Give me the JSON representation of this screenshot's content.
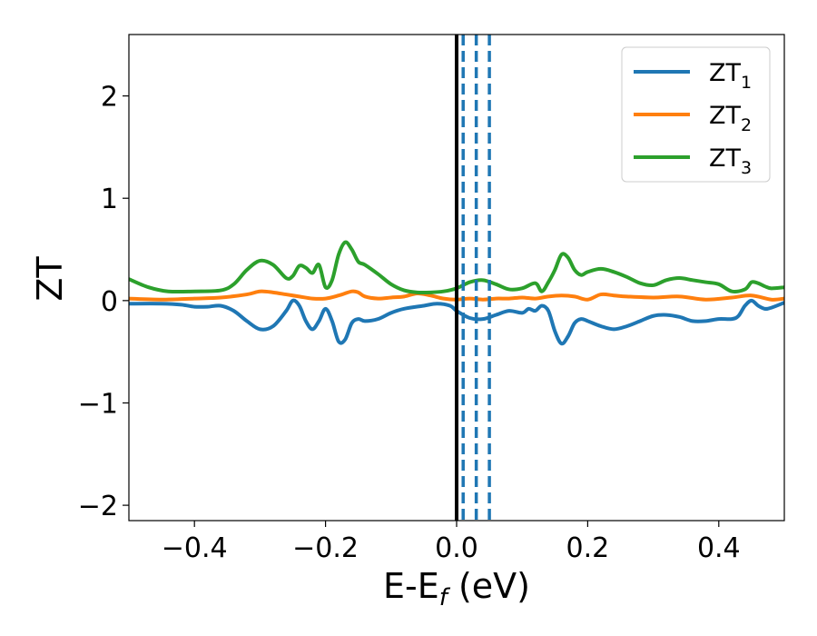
{
  "chart_data": {
    "type": "line",
    "xlabel": "E-E",
    "xlabel_sub": "f",
    "xlabel_unit": " (eV)",
    "ylabel": "ZT",
    "xlim": [
      -0.5,
      0.5
    ],
    "ylim": [
      -2.15,
      2.6
    ],
    "xticks": [
      -0.4,
      -0.2,
      0.0,
      0.2,
      0.4
    ],
    "xtick_labels": [
      "−0.4",
      "−0.2",
      "0.0",
      "0.2",
      "0.4"
    ],
    "yticks": [
      -2,
      -1,
      0,
      1,
      2
    ],
    "ytick_labels": [
      "−2",
      "−1",
      "0",
      "1",
      "2"
    ],
    "grid": false,
    "legend_position": "top-right",
    "vlines": [
      {
        "x": 0.0,
        "style": "solid",
        "color": "#000000"
      },
      {
        "x": 0.01,
        "style": "dashed",
        "color": "#1f77b4"
      },
      {
        "x": 0.03,
        "style": "dashed",
        "color": "#1f77b4"
      },
      {
        "x": 0.05,
        "style": "dashed",
        "color": "#1f77b4"
      }
    ],
    "series": [
      {
        "name": "ZT",
        "name_sub": "1",
        "color": "#1f77b4",
        "x": [
          -0.5,
          -0.45,
          -0.42,
          -0.4,
          -0.38,
          -0.36,
          -0.34,
          -0.32,
          -0.3,
          -0.28,
          -0.26,
          -0.25,
          -0.24,
          -0.23,
          -0.22,
          -0.21,
          -0.2,
          -0.19,
          -0.18,
          -0.17,
          -0.16,
          -0.15,
          -0.14,
          -0.12,
          -0.1,
          -0.08,
          -0.05,
          -0.03,
          -0.01,
          0.0,
          0.02,
          0.04,
          0.06,
          0.08,
          0.1,
          0.11,
          0.12,
          0.13,
          0.14,
          0.15,
          0.16,
          0.17,
          0.18,
          0.19,
          0.2,
          0.22,
          0.24,
          0.26,
          0.28,
          0.3,
          0.32,
          0.34,
          0.36,
          0.38,
          0.4,
          0.42,
          0.43,
          0.44,
          0.45,
          0.46,
          0.47,
          0.48,
          0.5
        ],
        "values": [
          -0.03,
          -0.03,
          -0.04,
          -0.06,
          -0.06,
          -0.05,
          -0.1,
          -0.2,
          -0.28,
          -0.25,
          -0.1,
          0.0,
          -0.05,
          -0.2,
          -0.28,
          -0.2,
          -0.08,
          -0.2,
          -0.4,
          -0.38,
          -0.22,
          -0.18,
          -0.2,
          -0.18,
          -0.12,
          -0.08,
          -0.05,
          -0.03,
          -0.05,
          -0.1,
          -0.17,
          -0.18,
          -0.14,
          -0.1,
          -0.12,
          -0.08,
          -0.1,
          -0.05,
          -0.1,
          -0.3,
          -0.42,
          -0.35,
          -0.22,
          -0.18,
          -0.2,
          -0.25,
          -0.28,
          -0.25,
          -0.2,
          -0.15,
          -0.14,
          -0.16,
          -0.2,
          -0.2,
          -0.18,
          -0.18,
          -0.15,
          -0.05,
          0.0,
          -0.05,
          -0.08,
          -0.07,
          -0.02
        ]
      },
      {
        "name": "ZT",
        "name_sub": "2",
        "color": "#ff7f0e",
        "x": [
          -0.5,
          -0.45,
          -0.4,
          -0.36,
          -0.32,
          -0.3,
          -0.28,
          -0.26,
          -0.24,
          -0.22,
          -0.2,
          -0.18,
          -0.16,
          -0.15,
          -0.14,
          -0.12,
          -0.1,
          -0.08,
          -0.06,
          -0.04,
          -0.02,
          0.0,
          0.02,
          0.04,
          0.06,
          0.08,
          0.1,
          0.12,
          0.14,
          0.16,
          0.18,
          0.2,
          0.22,
          0.24,
          0.26,
          0.3,
          0.34,
          0.38,
          0.42,
          0.45,
          0.48,
          0.5
        ],
        "values": [
          0.02,
          0.01,
          0.02,
          0.03,
          0.06,
          0.09,
          0.08,
          0.06,
          0.04,
          0.02,
          0.02,
          0.05,
          0.09,
          0.08,
          0.04,
          0.02,
          0.03,
          0.04,
          0.07,
          0.05,
          0.02,
          0.01,
          0.02,
          0.01,
          0.02,
          0.02,
          0.03,
          0.02,
          0.04,
          0.05,
          0.04,
          0.01,
          0.06,
          0.05,
          0.04,
          0.03,
          0.04,
          0.01,
          0.03,
          0.05,
          0.01,
          0.02
        ]
      },
      {
        "name": "ZT",
        "name_sub": "3",
        "color": "#2ca02c",
        "x": [
          -0.5,
          -0.47,
          -0.44,
          -0.4,
          -0.36,
          -0.34,
          -0.32,
          -0.3,
          -0.28,
          -0.26,
          -0.25,
          -0.24,
          -0.23,
          -0.22,
          -0.21,
          -0.2,
          -0.19,
          -0.18,
          -0.17,
          -0.16,
          -0.15,
          -0.14,
          -0.12,
          -0.1,
          -0.08,
          -0.06,
          -0.04,
          -0.02,
          0.0,
          0.02,
          0.04,
          0.06,
          0.08,
          0.1,
          0.12,
          0.13,
          0.14,
          0.15,
          0.16,
          0.17,
          0.18,
          0.19,
          0.2,
          0.22,
          0.24,
          0.26,
          0.28,
          0.3,
          0.32,
          0.34,
          0.36,
          0.38,
          0.4,
          0.42,
          0.44,
          0.45,
          0.46,
          0.47,
          0.48,
          0.5
        ],
        "values": [
          0.21,
          0.13,
          0.09,
          0.09,
          0.1,
          0.16,
          0.3,
          0.39,
          0.35,
          0.22,
          0.24,
          0.34,
          0.32,
          0.27,
          0.35,
          0.13,
          0.2,
          0.45,
          0.57,
          0.5,
          0.38,
          0.35,
          0.26,
          0.16,
          0.1,
          0.08,
          0.08,
          0.09,
          0.12,
          0.18,
          0.2,
          0.16,
          0.11,
          0.12,
          0.17,
          0.09,
          0.18,
          0.3,
          0.45,
          0.42,
          0.3,
          0.25,
          0.28,
          0.31,
          0.28,
          0.23,
          0.17,
          0.15,
          0.2,
          0.22,
          0.2,
          0.18,
          0.16,
          0.09,
          0.11,
          0.18,
          0.17,
          0.14,
          0.12,
          0.13
        ]
      }
    ]
  }
}
